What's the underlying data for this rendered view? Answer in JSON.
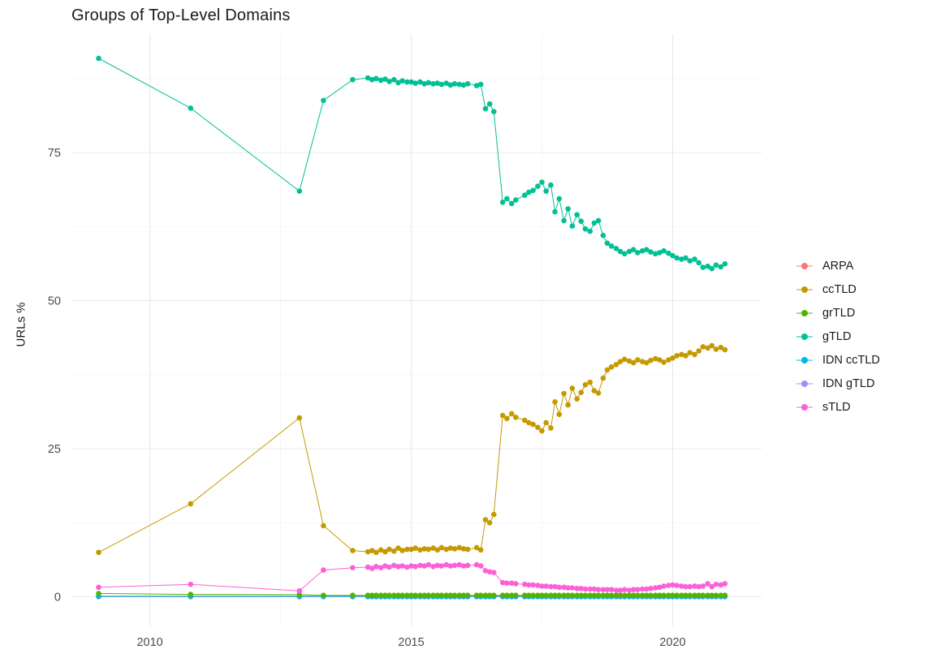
{
  "chart_data": {
    "type": "line",
    "title": "Groups of Top-Level Domains",
    "xlabel": "",
    "ylabel": "URLs %",
    "legend_position": "right",
    "grid": true,
    "background_color": "#FFFFFF",
    "grid_major_color": "#E9E9E9",
    "grid_minor_color": "#F4F4F4",
    "tick_label_color": "#4D4D4D",
    "text_color": "#1A1A1A",
    "xlim": [
      2008.5,
      2021.7
    ],
    "ylim": [
      -5,
      95
    ],
    "x_ticks": [
      2010,
      2015,
      2020
    ],
    "y_ticks": [
      0,
      25,
      50,
      75
    ],
    "x_minor_ticks": [
      2012.5,
      2017.5
    ],
    "y_minor_ticks": [
      12.5,
      37.5,
      62.5,
      87.5
    ],
    "x": [
      2009.02,
      2010.78,
      2012.86,
      2013.32,
      2013.88,
      2014.17,
      2014.25,
      2014.33,
      2014.42,
      2014.5,
      2014.58,
      2014.67,
      2014.75,
      2014.83,
      2014.92,
      2015.0,
      2015.08,
      2015.17,
      2015.25,
      2015.33,
      2015.42,
      2015.5,
      2015.58,
      2015.67,
      2015.75,
      2015.83,
      2015.92,
      2016.0,
      2016.08,
      2016.25,
      2016.33,
      2016.42,
      2016.5,
      2016.58,
      2016.75,
      2016.83,
      2016.92,
      2017.0,
      2017.17,
      2017.25,
      2017.33,
      2017.42,
      2017.5,
      2017.58,
      2017.67,
      2017.75,
      2017.83,
      2017.92,
      2018.0,
      2018.08,
      2018.17,
      2018.25,
      2018.33,
      2018.42,
      2018.5,
      2018.58,
      2018.67,
      2018.75,
      2018.83,
      2018.92,
      2019.0,
      2019.08,
      2019.17,
      2019.25,
      2019.33,
      2019.42,
      2019.5,
      2019.58,
      2019.67,
      2019.75,
      2019.83,
      2019.92,
      2020.0,
      2020.08,
      2020.17,
      2020.25,
      2020.33,
      2020.42,
      2020.5,
      2020.58,
      2020.67,
      2020.75,
      2020.83,
      2020.92,
      2021.0
    ],
    "series": [
      {
        "name": "ARPA",
        "color": "#F8766D",
        "z": 0,
        "y_const": 0.1
      },
      {
        "name": "ccTLD",
        "color": "#C49A00",
        "z": 3,
        "values": [
          7.5,
          15.7,
          30.2,
          12.0,
          7.8,
          7.6,
          7.8,
          7.5,
          7.9,
          7.6,
          8.0,
          7.7,
          8.2,
          7.8,
          8.0,
          8.0,
          8.2,
          7.9,
          8.1,
          8.0,
          8.2,
          7.9,
          8.3,
          8.0,
          8.2,
          8.1,
          8.3,
          8.1,
          8.0,
          8.3,
          7.9,
          13.0,
          12.5,
          13.9,
          30.6,
          30.1,
          30.9,
          30.3,
          29.8,
          29.4,
          29.1,
          28.6,
          28.0,
          29.4,
          28.5,
          32.9,
          30.8,
          34.3,
          32.4,
          35.2,
          33.4,
          34.5,
          35.8,
          36.2,
          34.8,
          34.4,
          36.9,
          38.3,
          38.8,
          39.2,
          39.7,
          40.1,
          39.8,
          39.5,
          40.0,
          39.7,
          39.5,
          39.9,
          40.2,
          40.0,
          39.6,
          40.0,
          40.3,
          40.7,
          40.9,
          40.7,
          41.2,
          40.9,
          41.5,
          42.2,
          42.0,
          42.4,
          41.8,
          42.1,
          41.7
        ]
      },
      {
        "name": "grTLD",
        "color": "#53B400",
        "z": 5,
        "y_const": 0.25,
        "y_overrides": {
          "0": 0.55,
          "1": 0.4,
          "2": 0.35
        }
      },
      {
        "name": "gTLD",
        "color": "#00C094",
        "z": 4,
        "values": [
          90.9,
          82.5,
          68.5,
          83.8,
          87.3,
          87.6,
          87.3,
          87.5,
          87.2,
          87.4,
          87.0,
          87.3,
          86.8,
          87.1,
          86.9,
          86.9,
          86.7,
          86.9,
          86.6,
          86.8,
          86.6,
          86.7,
          86.5,
          86.7,
          86.4,
          86.6,
          86.5,
          86.4,
          86.6,
          86.3,
          86.5,
          82.4,
          83.2,
          81.9,
          66.6,
          67.2,
          66.4,
          67.0,
          67.8,
          68.3,
          68.6,
          69.3,
          70.0,
          68.5,
          69.5,
          65.0,
          67.2,
          63.5,
          65.5,
          62.6,
          64.5,
          63.4,
          62.1,
          61.7,
          63.1,
          63.5,
          61.0,
          59.7,
          59.2,
          58.8,
          58.3,
          57.9,
          58.3,
          58.6,
          58.1,
          58.4,
          58.6,
          58.2,
          57.9,
          58.1,
          58.4,
          58.0,
          57.6,
          57.2,
          57.0,
          57.2,
          56.7,
          57.0,
          56.4,
          55.6,
          55.8,
          55.4,
          56.0,
          55.7,
          56.2
        ]
      },
      {
        "name": "IDN ccTLD",
        "color": "#00B6EB",
        "z": 2,
        "y_const": 0.05
      },
      {
        "name": "IDN gTLD",
        "color": "#A58AFF",
        "z": 1,
        "y_const": 0.02
      },
      {
        "name": "sTLD",
        "color": "#FB61D7",
        "z": 6,
        "values": [
          1.6,
          2.1,
          1.0,
          4.5,
          4.9,
          5.0,
          4.8,
          5.1,
          4.9,
          5.2,
          5.0,
          5.3,
          5.1,
          5.2,
          5.0,
          5.2,
          5.1,
          5.3,
          5.2,
          5.4,
          5.1,
          5.3,
          5.2,
          5.4,
          5.2,
          5.3,
          5.4,
          5.2,
          5.3,
          5.4,
          5.2,
          4.4,
          4.2,
          4.1,
          2.4,
          2.3,
          2.3,
          2.2,
          2.1,
          2.0,
          2.0,
          1.9,
          1.8,
          1.8,
          1.7,
          1.7,
          1.6,
          1.6,
          1.5,
          1.5,
          1.4,
          1.4,
          1.3,
          1.3,
          1.3,
          1.2,
          1.2,
          1.2,
          1.2,
          1.1,
          1.1,
          1.2,
          1.1,
          1.2,
          1.2,
          1.3,
          1.3,
          1.4,
          1.5,
          1.6,
          1.8,
          1.9,
          2.0,
          1.9,
          1.8,
          1.7,
          1.7,
          1.8,
          1.7,
          1.8,
          2.2,
          1.7,
          2.1,
          2.0,
          2.2
        ]
      }
    ]
  }
}
